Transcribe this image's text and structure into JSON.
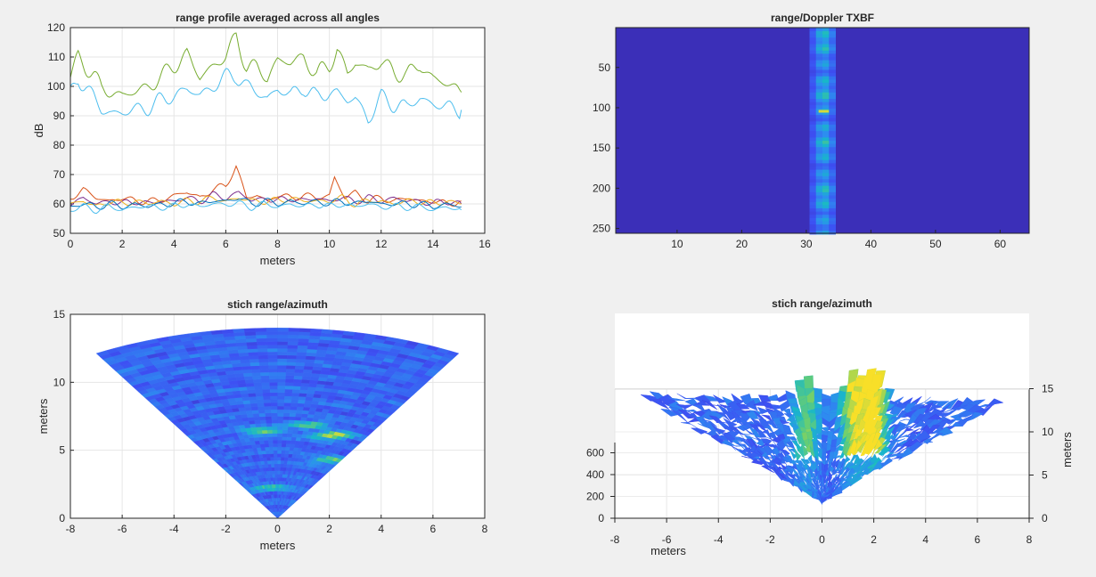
{
  "figure": {
    "background": "#f0f0f0",
    "axes_bg": "#ffffff"
  },
  "chart_data": [
    {
      "type": "line",
      "title": "range profile averaged across all angles",
      "xlabel": "meters",
      "ylabel": "dB",
      "xlim": [
        0,
        16
      ],
      "ylim": [
        50,
        120
      ],
      "xticks": [
        "0",
        "2",
        "4",
        "6",
        "8",
        "10",
        "12",
        "14",
        "16"
      ],
      "yticks": [
        "50",
        "60",
        "70",
        "80",
        "90",
        "100",
        "110",
        "120"
      ],
      "grid": true,
      "series": [
        {
          "color": "#77ac30",
          "x": [
            0,
            0.3,
            0.6,
            0.9,
            1.2,
            1.6,
            2.0,
            2.5,
            3.0,
            3.5,
            4.0,
            4.5,
            5.0,
            5.5,
            6.0,
            6.4,
            6.8,
            7.2,
            7.6,
            8.0,
            8.5,
            9.0,
            9.5,
            10.0,
            10.3,
            10.7,
            11.0,
            11.5,
            12.0,
            12.5,
            13.0,
            13.5,
            14.0,
            14.5,
            15.1
          ],
          "y": [
            103,
            110,
            107,
            104,
            99,
            98,
            97,
            98,
            100,
            103,
            107,
            111,
            103,
            107,
            110,
            117,
            107,
            106,
            103,
            109,
            108,
            110,
            104,
            107,
            113,
            104,
            108,
            106,
            108,
            105,
            104,
            107,
            103,
            101,
            98
          ]
        },
        {
          "color": "#4dbeee",
          "x": [
            0,
            0.3,
            0.6,
            0.9,
            1.2,
            1.6,
            2.0,
            2.5,
            3.0,
            3.5,
            4.0,
            4.5,
            5.0,
            5.5,
            6.0,
            6.4,
            6.8,
            7.2,
            7.6,
            8.0,
            8.5,
            9.0,
            9.5,
            10.0,
            10.3,
            10.7,
            11.0,
            11.5,
            12.0,
            12.5,
            13.0,
            13.5,
            14.0,
            14.5,
            15.1
          ],
          "y": [
            97,
            103,
            100,
            96,
            92,
            91,
            91,
            92,
            93,
            95,
            97,
            99,
            97,
            100,
            103,
            104,
            100,
            98,
            96,
            99,
            97,
            100,
            96,
            98,
            98,
            95,
            96,
            89,
            96,
            94,
            93,
            96,
            94,
            93,
            92
          ]
        },
        {
          "color": "#d95319",
          "x": [
            0,
            0.5,
            1,
            1.5,
            2,
            2.5,
            3,
            3.5,
            4,
            4.5,
            5,
            5.5,
            6,
            6.4,
            6.8,
            7.2,
            7.6,
            8,
            8.5,
            9,
            9.5,
            10,
            10.2,
            10.6,
            11,
            11.5,
            12,
            12.5,
            13,
            13.5,
            14,
            14.5,
            15.1
          ],
          "y": [
            62,
            65,
            62,
            61,
            62,
            61,
            61,
            61,
            63,
            64,
            62,
            65,
            66,
            73,
            62,
            63,
            61,
            63,
            62,
            63,
            62,
            63,
            69,
            62,
            64,
            61,
            62,
            61,
            62,
            61,
            61,
            60,
            61
          ]
        },
        {
          "color": "#7e2f8e",
          "x": [
            0,
            0.5,
            1,
            1.5,
            2,
            2.5,
            3,
            3.5,
            4,
            4.5,
            5,
            5.5,
            6,
            6.5,
            7,
            7.5,
            8,
            8.5,
            9,
            9.5,
            10,
            10.5,
            11,
            11.5,
            12,
            12.5,
            13,
            13.5,
            14,
            14.5,
            15.1
          ],
          "y": [
            60,
            62,
            60,
            61,
            60,
            61,
            60,
            61,
            61,
            62,
            61,
            63,
            62,
            64,
            61,
            62,
            61,
            62,
            61,
            62,
            61,
            62,
            61,
            62,
            61,
            62,
            61,
            61,
            60,
            61,
            60
          ]
        },
        {
          "color": "#edb120",
          "x": [
            0,
            0.5,
            1,
            1.5,
            2,
            2.5,
            3,
            3.5,
            4,
            4.5,
            5,
            5.5,
            6,
            6.5,
            7,
            7.5,
            8,
            8.5,
            9,
            9.5,
            10,
            10.5,
            11,
            11.5,
            12,
            12.5,
            13,
            13.5,
            14,
            14.5,
            15.1
          ],
          "y": [
            60,
            61,
            59,
            61,
            60,
            61,
            60,
            61,
            60,
            61,
            61,
            62,
            61,
            62,
            61,
            61,
            61,
            62,
            61,
            61,
            61,
            62,
            60,
            61,
            61,
            60,
            61,
            61,
            60,
            61,
            60
          ]
        },
        {
          "color": "#0072bd",
          "x": [
            0,
            0.5,
            1,
            1.5,
            2,
            2.5,
            3,
            3.5,
            4,
            4.5,
            5,
            5.5,
            6,
            6.5,
            7,
            7.5,
            8,
            8.5,
            9,
            9.5,
            10,
            10.5,
            11,
            11.5,
            12,
            12.5,
            13,
            13.5,
            14,
            14.5,
            15.1
          ],
          "y": [
            59,
            60,
            59,
            60,
            59,
            60,
            59,
            60,
            60,
            61,
            60,
            61,
            61,
            62,
            60,
            61,
            60,
            61,
            60,
            61,
            60,
            61,
            60,
            61,
            60,
            60,
            60,
            60,
            59,
            60,
            59
          ]
        },
        {
          "color": "#4dbeee",
          "x": [
            0,
            0.5,
            1,
            1.5,
            2,
            2.5,
            3,
            3.5,
            4,
            4.5,
            5,
            5.5,
            6,
            6.5,
            7,
            7.5,
            8,
            8.5,
            9,
            9.5,
            10,
            10.5,
            11,
            11.5,
            12,
            12.5,
            13,
            13.5,
            14,
            14.5,
            15.1
          ],
          "y": [
            58,
            59,
            58,
            59,
            58,
            59,
            59,
            59,
            59,
            60,
            59,
            60,
            60,
            60,
            59,
            60,
            59,
            60,
            59,
            60,
            59,
            60,
            59,
            60,
            59,
            59,
            59,
            59,
            58,
            59,
            58
          ]
        }
      ]
    },
    {
      "type": "heatmap",
      "title": "range/Doppler TXBF",
      "xlim": [
        0.5,
        64.5
      ],
      "ylim": [
        256,
        0.5
      ],
      "xticks": [
        "10",
        "20",
        "30",
        "40",
        "50",
        "60"
      ],
      "yticks": [
        "50",
        "100",
        "150",
        "200",
        "250"
      ],
      "background_color": "#3b2fb8",
      "stripe": {
        "x_from": 31,
        "x_to": 34,
        "center": 32.7,
        "hot_y": 105
      },
      "colormap": [
        "#3e26a8",
        "#3d4ff3",
        "#2d8ef0",
        "#18b8c8",
        "#6ccf6e",
        "#f8df28"
      ]
    },
    {
      "type": "heatmap",
      "title": "stich range/azimuth",
      "xlabel": "meters",
      "ylabel": "meters",
      "xlim": [
        -8,
        8
      ],
      "ylim": [
        0,
        15
      ],
      "xticks": [
        "-8",
        "-6",
        "-4",
        "-2",
        "0",
        "2",
        "4",
        "6",
        "8"
      ],
      "yticks": [
        "0",
        "5",
        "10",
        "15"
      ],
      "grid": true,
      "sector_deg": 30,
      "max_range_m": 14,
      "hotspots": [
        {
          "x": 2.1,
          "y": 6.1,
          "level": 0.8
        },
        {
          "x": -0.6,
          "y": 6.4,
          "level": 0.6
        },
        {
          "x": 1.2,
          "y": 6.9,
          "level": 0.5
        },
        {
          "x": 2.0,
          "y": 4.3,
          "level": 0.5
        },
        {
          "x": -0.3,
          "y": 2.3,
          "level": 0.4
        }
      ]
    },
    {
      "type": "surface",
      "title": "stich range/azimuth",
      "xlabel": "meters",
      "ylabel": "meters",
      "xticks": [
        "-8",
        "-6",
        "-4",
        "-2",
        "0",
        "2",
        "4",
        "6",
        "8"
      ],
      "yticks": [
        "0",
        "5",
        "10",
        "15"
      ],
      "zticks": [
        "0",
        "200",
        "400",
        "600"
      ],
      "peaks": [
        {
          "x": 2.0,
          "level": 0.85
        },
        {
          "x": 1.2,
          "level": 0.7
        },
        {
          "x": -0.6,
          "level": 0.55
        }
      ]
    }
  ]
}
